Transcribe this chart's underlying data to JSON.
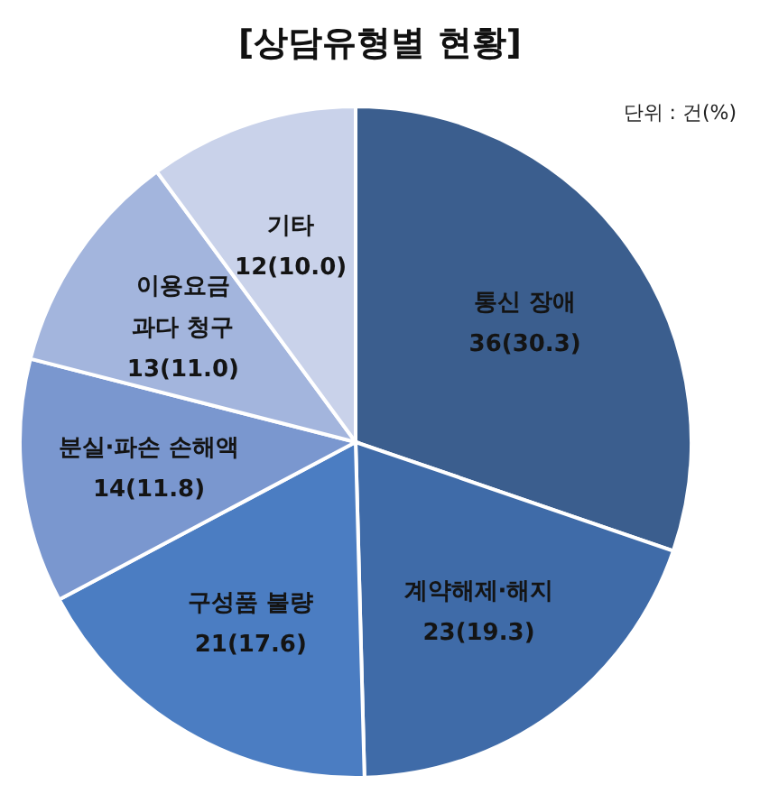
{
  "chart_data": {
    "type": "pie",
    "title": "[상담유형별 현황]",
    "annotations": [
      "단위 : 건(%)"
    ],
    "categories": [
      "통신 장애",
      "계약해제·해지",
      "구성품 불량",
      "분실·파손 손해액",
      "이용요금 과다 청구",
      "기타"
    ],
    "values": [
      36,
      23,
      21,
      14,
      13,
      12
    ],
    "value_labels": [
      "36(30.3)",
      "23(19.3)",
      "21(17.6)",
      "14(11.8)",
      "13(11.0)",
      "12(10.0)"
    ],
    "colors": [
      "#3b5e8e",
      "#3f6ba8",
      "#4b7dc2",
      "#7a97cf",
      "#a3b5dd",
      "#c9d2ea"
    ]
  }
}
